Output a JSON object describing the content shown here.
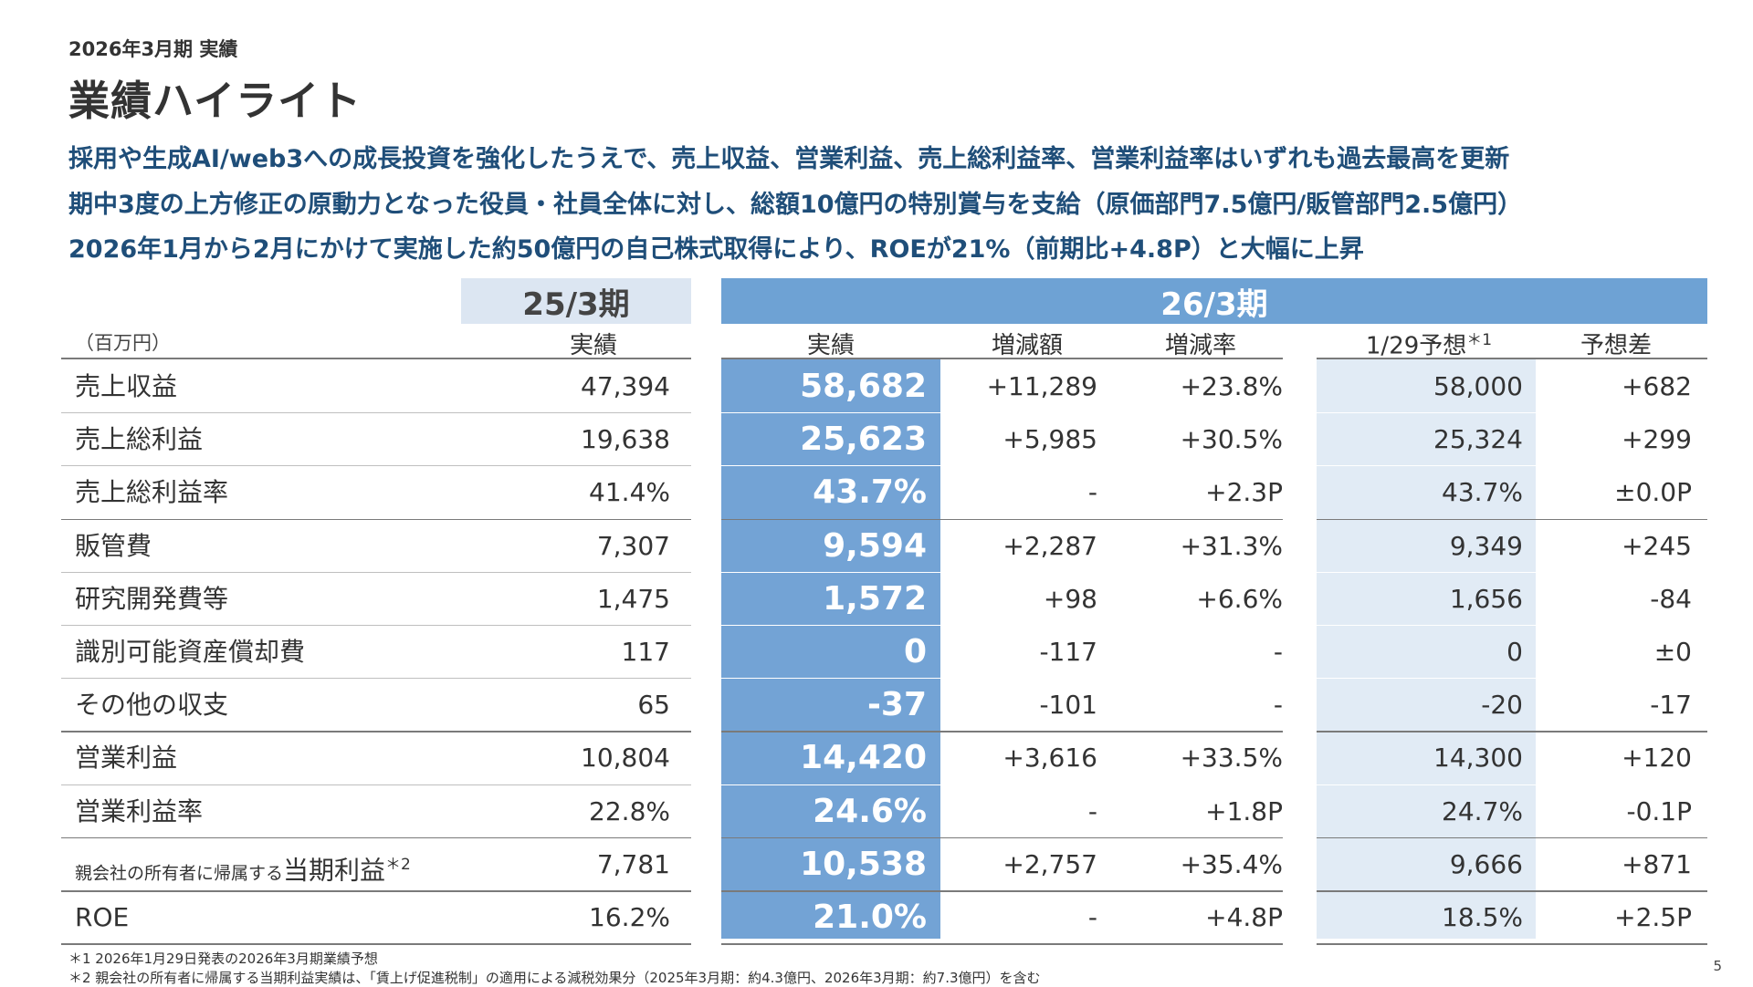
{
  "header": {
    "subtitle": "2026年3月期 実績",
    "title": "業績ハイライト"
  },
  "headlines": [
    "採用や生成AI/web3への成長投資を強化したうえで、売上収益、営業利益、売上総利益率、営業利益率はいずれも過去最高を更新",
    "期中3度の上方修正の原動力となった役員・社員全体に対し、総額10億円の特別賞与を支給（原価部門7.5億円/販管部門2.5億円）",
    "2026年1月から2月にかけて実施した約50億円の自己株式取得により、ROEが21%（前期比+4.8P）と大幅に上昇"
  ],
  "table": {
    "unit": "（百万円）",
    "period_prev": "25/3期",
    "period_cur": "26/3期",
    "col_prev_actual": "実績",
    "col_cur_actual": "実績",
    "col_diff": "増減額",
    "col_rate": "増減率",
    "col_forecast": "1/29予想",
    "col_forecast_mark": "＊1",
    "col_fc_diff": "予想差",
    "rows": [
      {
        "label": "売上収益",
        "prev": "47,394",
        "actual": "58,682",
        "diff": "+11,289",
        "rate": "+23.8%",
        "forecast": "58,000",
        "fc_diff": "+682"
      },
      {
        "label": "売上総利益",
        "prev": "19,638",
        "actual": "25,623",
        "diff": "+5,985",
        "rate": "+30.5%",
        "forecast": "25,324",
        "fc_diff": "+299"
      },
      {
        "label": "売上総利益率",
        "prev": "41.4%",
        "actual": "43.7%",
        "diff": "-",
        "rate": "+2.3P",
        "forecast": "43.7%",
        "fc_diff": "±0.0P"
      },
      {
        "label": "販管費",
        "prev": "7,307",
        "actual": "9,594",
        "diff": "+2,287",
        "rate": "+31.3%",
        "forecast": "9,349",
        "fc_diff": "+245"
      },
      {
        "label": "研究開発費等",
        "prev": "1,475",
        "actual": "1,572",
        "diff": "+98",
        "rate": "+6.6%",
        "forecast": "1,656",
        "fc_diff": "-84"
      },
      {
        "label": "識別可能資産償却費",
        "prev": "117",
        "actual": "0",
        "diff": "-117",
        "rate": "-",
        "forecast": "0",
        "fc_diff": "±0"
      },
      {
        "label": "その他の収支",
        "prev": "65",
        "actual": "-37",
        "diff": "-101",
        "rate": "-",
        "forecast": "-20",
        "fc_diff": "-17"
      },
      {
        "label": "営業利益",
        "prev": "10,804",
        "actual": "14,420",
        "diff": "+3,616",
        "rate": "+33.5%",
        "forecast": "14,300",
        "fc_diff": "+120"
      },
      {
        "label": "営業利益率",
        "prev": "22.8%",
        "actual": "24.6%",
        "diff": "-",
        "rate": "+1.8P",
        "forecast": "24.7%",
        "fc_diff": "-0.1P"
      },
      {
        "label_small": "親会社の所有者に帰属する",
        "label": "当期利益",
        "label_mark": "＊2",
        "prev": "7,781",
        "actual": "10,538",
        "diff": "+2,757",
        "rate": "+35.4%",
        "forecast": "9,666",
        "fc_diff": "+871"
      },
      {
        "label": "ROE",
        "prev": "16.2%",
        "actual": "21.0%",
        "diff": "-",
        "rate": "+4.8P",
        "forecast": "18.5%",
        "fc_diff": "+2.5P"
      }
    ]
  },
  "footnotes": [
    "＊1 2026年1月29日発表の2026年3月期業績予想",
    "＊2 親会社の所有者に帰属する当期利益実績は、「賃上げ促進税制」の適用による減税効果分（2025年3月期：約4.3億円、2026年3月期：約7.3億円）を含む"
  ],
  "page_number": "5",
  "colors": {
    "headline": "#1f4e79",
    "band_current": "#6ea2d4",
    "band_previous": "#dce6f2",
    "actual_column": "#73a3d5",
    "forecast_column": "#e1ebf5"
  }
}
